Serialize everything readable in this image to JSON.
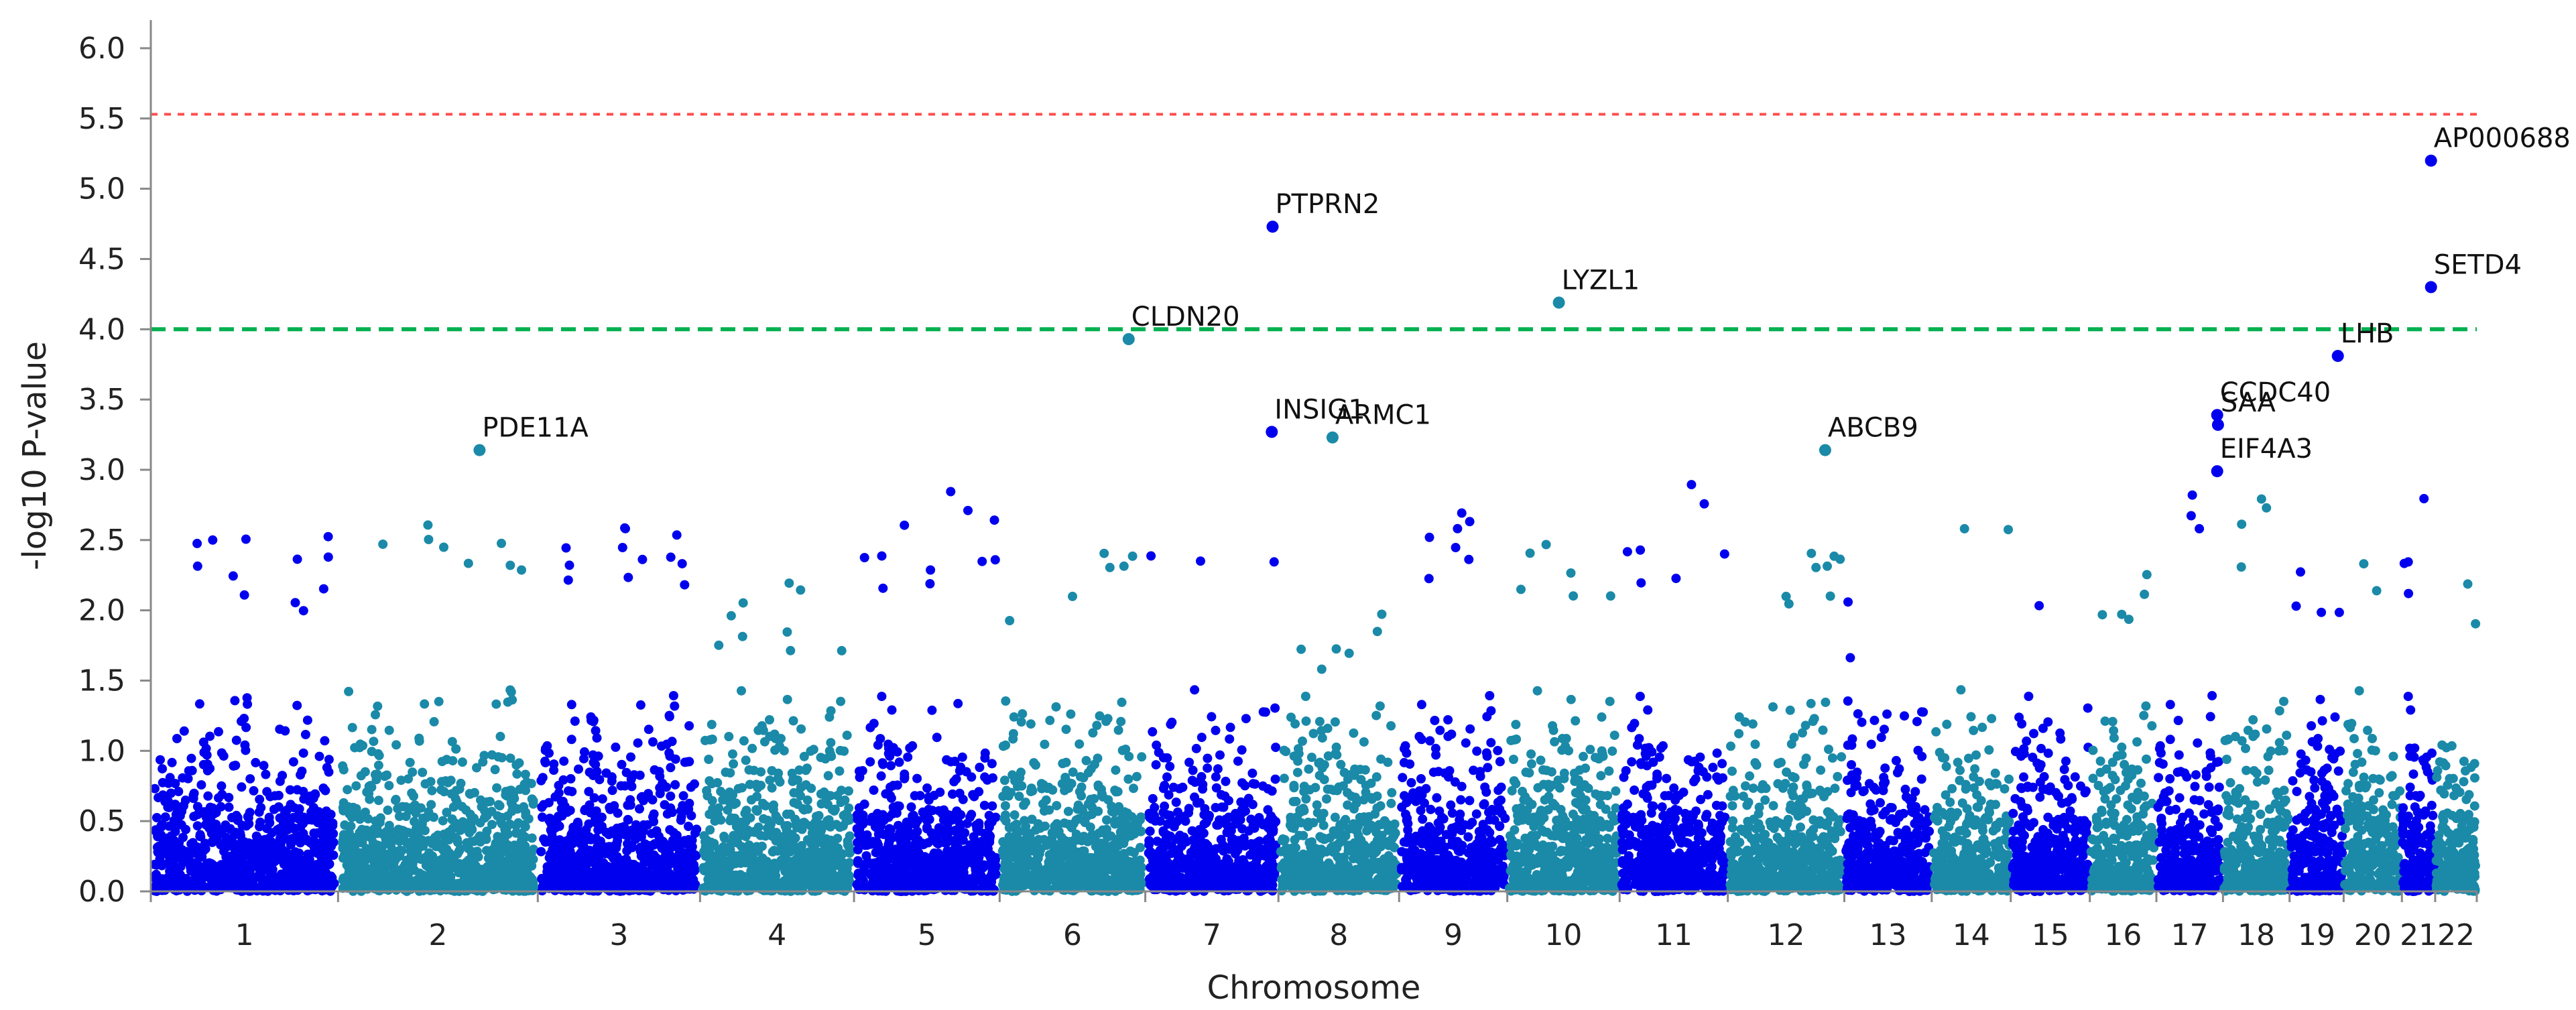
{
  "colors": {
    "odd": "#0000ee",
    "even": "#1a8aa8",
    "suggestive": "#00b050",
    "genomewide": "#ff4d4d",
    "axis": "#888888"
  },
  "chart_data": {
    "type": "scatter",
    "title": "",
    "xlabel": "Chromosome",
    "ylabel": "-log10 P-value",
    "ylim": [
      0,
      6.2
    ],
    "yticks": [
      "0.0",
      "0.5",
      "1.0",
      "1.5",
      "2.0",
      "2.5",
      "3.0",
      "3.5",
      "4.0",
      "4.5",
      "5.0",
      "5.5",
      "6.0"
    ],
    "chromosomes": [
      "1",
      "2",
      "3",
      "4",
      "5",
      "6",
      "7",
      "8",
      "9",
      "10",
      "11",
      "12",
      "13",
      "14",
      "15",
      "16",
      "17",
      "18",
      "19",
      "20",
      "21",
      "22"
    ],
    "chromosome_spans": [
      {
        "chr": "1",
        "start": 0.0,
        "end": 2.25
      },
      {
        "chr": "2",
        "start": 2.25,
        "end": 4.65
      },
      {
        "chr": "3",
        "start": 4.65,
        "end": 6.6
      },
      {
        "chr": "4",
        "start": 6.6,
        "end": 8.45
      },
      {
        "chr": "5",
        "start": 8.45,
        "end": 10.2
      },
      {
        "chr": "6",
        "start": 10.2,
        "end": 11.95
      },
      {
        "chr": "7",
        "start": 11.95,
        "end": 13.55
      },
      {
        "chr": "8",
        "start": 13.55,
        "end": 15.0
      },
      {
        "chr": "9",
        "start": 15.0,
        "end": 16.3
      },
      {
        "chr": "10",
        "start": 16.3,
        "end": 17.65
      },
      {
        "chr": "11",
        "start": 17.65,
        "end": 18.95
      },
      {
        "chr": "12",
        "start": 18.95,
        "end": 20.35
      },
      {
        "chr": "13",
        "start": 20.35,
        "end": 21.4
      },
      {
        "chr": "14",
        "start": 21.4,
        "end": 22.35
      },
      {
        "chr": "15",
        "start": 22.35,
        "end": 23.3
      },
      {
        "chr": "16",
        "start": 23.3,
        "end": 24.1
      },
      {
        "chr": "17",
        "start": 24.1,
        "end": 24.9
      },
      {
        "chr": "18",
        "start": 24.9,
        "end": 25.7
      },
      {
        "chr": "19",
        "start": 25.7,
        "end": 26.35
      },
      {
        "chr": "20",
        "start": 26.35,
        "end": 27.05
      },
      {
        "chr": "21",
        "start": 27.05,
        "end": 27.45
      },
      {
        "chr": "22",
        "start": 27.45,
        "end": 27.95
      }
    ],
    "suggestive_line": 4.0,
    "genomewide_line": 5.53,
    "labeled_snps": [
      {
        "gene": "PDE11A",
        "chr": "2",
        "pos": 3.95,
        "p": 3.14,
        "color": "even"
      },
      {
        "gene": "CLDN20",
        "chr": "6",
        "pos": 11.75,
        "p": 3.93,
        "color": "even"
      },
      {
        "gene": "PTPRN2",
        "chr": "7",
        "pos": 13.48,
        "p": 4.73,
        "color": "odd"
      },
      {
        "gene": "INSIG1",
        "chr": "7",
        "pos": 13.47,
        "p": 3.27,
        "color": "odd"
      },
      {
        "gene": "ARMC1",
        "chr": "8",
        "pos": 14.2,
        "p": 3.23,
        "color": "even"
      },
      {
        "gene": "LYZL1",
        "chr": "10",
        "pos": 16.92,
        "p": 4.19,
        "color": "even"
      },
      {
        "gene": "ABCB9",
        "chr": "12",
        "pos": 20.12,
        "p": 3.14,
        "color": "even"
      },
      {
        "gene": "CCDC40",
        "chr": "17",
        "pos": 24.83,
        "p": 3.39,
        "color": "odd"
      },
      {
        "gene": "SAA",
        "chr": "17",
        "pos": 24.84,
        "p": 3.32,
        "color": "odd"
      },
      {
        "gene": "EIF4A3",
        "chr": "17",
        "pos": 24.83,
        "p": 2.99,
        "color": "odd"
      },
      {
        "gene": "LHB",
        "chr": "19",
        "pos": 26.28,
        "p": 3.81,
        "color": "odd"
      },
      {
        "gene": "SETD4",
        "chr": "21",
        "pos": 27.4,
        "p": 4.3,
        "color": "odd"
      },
      {
        "gene": "AP000688",
        "chr": "21",
        "pos": 27.4,
        "p": 5.2,
        "color": "odd"
      }
    ],
    "background_snps": {
      "description": "dense cloud of non-significant SNPs per chromosome; approx per-chromosome maxima",
      "chr_max": [
        2.55,
        2.85,
        2.7,
        2.2,
        2.85,
        2.55,
        2.55,
        2.1,
        2.7,
        2.7,
        2.9,
        2.55,
        2.2,
        2.8,
        2.7,
        2.4,
        2.95,
        2.8,
        2.55,
        2.55,
        2.8,
        2.3
      ]
    }
  }
}
